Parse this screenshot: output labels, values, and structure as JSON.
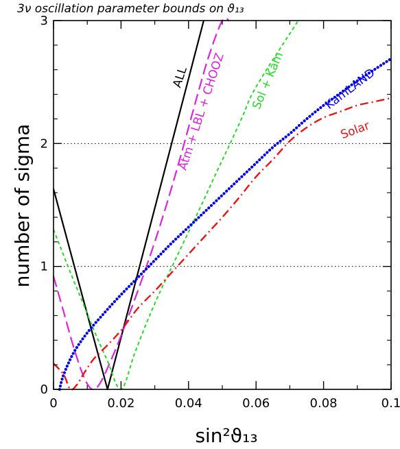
{
  "chart_data": {
    "type": "line",
    "title": "3ν oscillation parameter bounds on ϑ₁₃",
    "xlabel": "sin²ϑ₁₃",
    "ylabel": "number of sigma",
    "xlim": [
      0,
      0.1
    ],
    "ylim": [
      0,
      3
    ],
    "xticks": [
      "0",
      "0.02",
      "0.04",
      "0.06",
      "0.08",
      "0.1"
    ],
    "yticks": [
      "0",
      "1",
      "2",
      "3"
    ],
    "reference_lines": [
      1,
      2
    ],
    "series": [
      {
        "name": "ALL",
        "color": "#000000",
        "style": "solid",
        "x": [
          0,
          0.016,
          0.0445
        ],
        "y": [
          1.63,
          0,
          3.0
        ],
        "label_at": [
          0.0385,
          2.53
        ],
        "label_rot": -72
      },
      {
        "name": "Atm + LBL + CHOOZ",
        "color": "#e020e0",
        "style": "dashed",
        "x": [
          0,
          0.003,
          0.006,
          0.009,
          0.0115,
          0.014,
          0.018,
          0.022,
          0.026,
          0.03,
          0.034,
          0.038,
          0.042,
          0.046,
          0.05,
          0.052
        ],
        "y": [
          0.92,
          0.63,
          0.34,
          0.1,
          0,
          0.06,
          0.3,
          0.58,
          0.88,
          1.2,
          1.55,
          1.93,
          2.33,
          2.71,
          3.0,
          3.0
        ],
        "label_at": [
          0.0448,
          2.25
        ],
        "label_rot": -72
      },
      {
        "name": "Sol + Kam",
        "color": "#22dd22",
        "style": "shortdash",
        "x": [
          0,
          0.004,
          0.008,
          0.012,
          0.016,
          0.02,
          0.024,
          0.028,
          0.032,
          0.036,
          0.04,
          0.044,
          0.048,
          0.052,
          0.056,
          0.06,
          0.0725
        ],
        "y": [
          1.3,
          1.02,
          0.75,
          0.48,
          0.23,
          0,
          0.29,
          0.57,
          0.82,
          1.05,
          1.28,
          1.51,
          1.75,
          1.98,
          2.22,
          2.46,
          3.0
        ],
        "label_at": [
          0.0645,
          2.5
        ],
        "label_rot": -67
      },
      {
        "name": "KamLAND",
        "color": "#0000ee",
        "style": "dotted",
        "x": [
          0.0018,
          0.003,
          0.006,
          0.01,
          0.015,
          0.02,
          0.025,
          0.03,
          0.035,
          0.04,
          0.045,
          0.05,
          0.055,
          0.06,
          0.065,
          0.07,
          0.075,
          0.08,
          0.085,
          0.09,
          0.095,
          0.1
        ],
        "y": [
          0.0,
          0.12,
          0.3,
          0.46,
          0.62,
          0.77,
          0.91,
          1.05,
          1.19,
          1.32,
          1.45,
          1.58,
          1.71,
          1.84,
          1.97,
          2.08,
          2.2,
          2.31,
          2.41,
          2.51,
          2.6,
          2.69
        ],
        "label_at": [
          0.0885,
          2.42
        ],
        "label_rot": -37
      },
      {
        "name": "Solar",
        "color": "#ee1111",
        "style": "dashdot",
        "x": [
          0,
          0.003,
          0.005,
          0.007,
          0.009,
          0.012,
          0.016,
          0.02,
          0.025,
          0.03,
          0.035,
          0.04,
          0.045,
          0.05,
          0.055,
          0.06,
          0.065,
          0.07,
          0.075,
          0.08,
          0.085,
          0.09,
          0.095,
          0.1
        ],
        "y": [
          0.21,
          0.12,
          0.0,
          0.04,
          0.13,
          0.25,
          0.36,
          0.48,
          0.66,
          0.8,
          0.95,
          1.1,
          1.25,
          1.4,
          1.56,
          1.73,
          1.87,
          2.02,
          2.13,
          2.21,
          2.26,
          2.31,
          2.34,
          2.37
        ],
        "label_at": [
          0.0897,
          2.08
        ],
        "label_rot": -20
      }
    ]
  }
}
